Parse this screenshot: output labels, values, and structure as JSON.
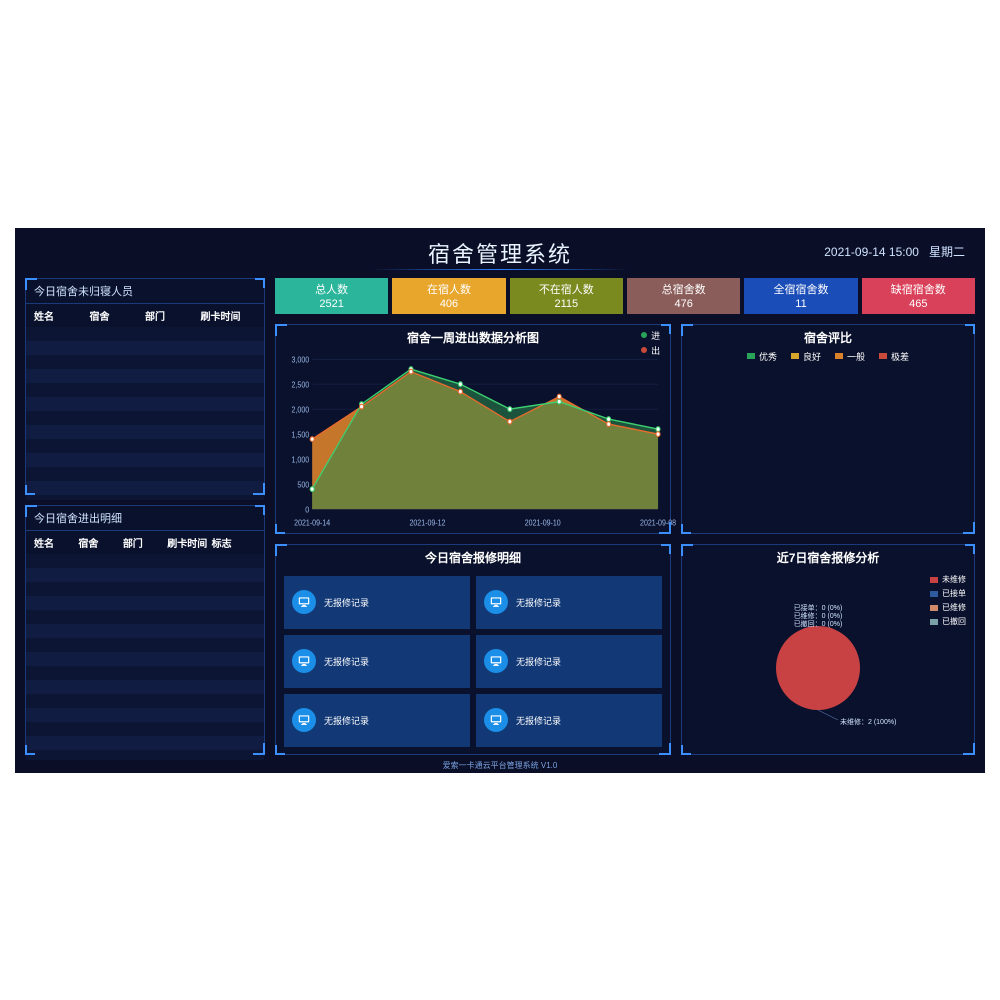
{
  "header": {
    "title": "宿舍管理系统",
    "datetime": "2021-09-14 15:00",
    "weekday": "星期二"
  },
  "left_top": {
    "title": "今日宿舍未归寝人员",
    "columns": [
      "姓名",
      "宿舍",
      "部门",
      "刷卡时间"
    ]
  },
  "left_bottom": {
    "title": "今日宿舍进出明细",
    "columns": [
      "姓名",
      "宿舍",
      "部门",
      "刷卡时间",
      "标志"
    ]
  },
  "stats": [
    {
      "label": "总人数",
      "value": "2521",
      "color": "#2bb59a"
    },
    {
      "label": "在宿人数",
      "value": "406",
      "color": "#e8a62c"
    },
    {
      "label": "不在宿人数",
      "value": "2115",
      "color": "#7a8a1e"
    },
    {
      "label": "总宿舍数",
      "value": "476",
      "color": "#8a5d5a"
    },
    {
      "label": "全宿宿舍数",
      "value": "11",
      "color": "#1a4db8"
    },
    {
      "label": "缺宿宿舍数",
      "value": "465",
      "color": "#d9415a"
    }
  ],
  "weekly_chart": {
    "title": "宿舍一周进出数据分析图",
    "legend": [
      {
        "label": "进",
        "color": "#2aa35a"
      },
      {
        "label": "出",
        "color": "#c94a3a"
      }
    ],
    "x_labels": [
      "2021-09-14",
      "2021-09-12",
      "2021-09-10",
      "2021-09-08"
    ],
    "y_ticks": [
      0,
      500,
      1000,
      1500,
      2000,
      2500,
      3000
    ],
    "ylim": [
      0,
      3000
    ],
    "grid_color": "#1a2a55",
    "series_in": [
      400,
      2100,
      2800,
      2500,
      2000,
      2150,
      1800,
      1600
    ],
    "series_out": [
      1400,
      2050,
      2750,
      2350,
      1750,
      2250,
      1700,
      1500
    ],
    "fill_in": "#2a8a4a",
    "fill_out": "#d9822b",
    "line_in": "#3cd070",
    "line_out": "#e86a2c"
  },
  "rating": {
    "title": "宿舍评比",
    "legend": [
      {
        "label": "优秀",
        "color": "#2aa35a"
      },
      {
        "label": "良好",
        "color": "#d9a62c"
      },
      {
        "label": "一般",
        "color": "#d9822b"
      },
      {
        "label": "极差",
        "color": "#c94a3a"
      }
    ]
  },
  "repair_today": {
    "title": "今日宿舍报修明细",
    "item_label": "无报修记录",
    "items_count": 6
  },
  "repair_7day": {
    "title": "近7日宿舍报修分析",
    "legend": [
      {
        "label": "未维修",
        "color": "#c94243"
      },
      {
        "label": "已接单",
        "color": "#2e5aa0"
      },
      {
        "label": "已维修",
        "color": "#d08a6a"
      },
      {
        "label": "已撤回",
        "color": "#7aa0a8"
      }
    ],
    "slices": [
      {
        "label": "未维修：2 (100%)",
        "value": 100,
        "color": "#c94243"
      }
    ],
    "top_labels": [
      "已接单：0 (0%)",
      "已维修：0 (0%)",
      "已撤回：0 (0%)"
    ]
  },
  "footer": "爱索一卡通云平台管理系统 V1.0"
}
